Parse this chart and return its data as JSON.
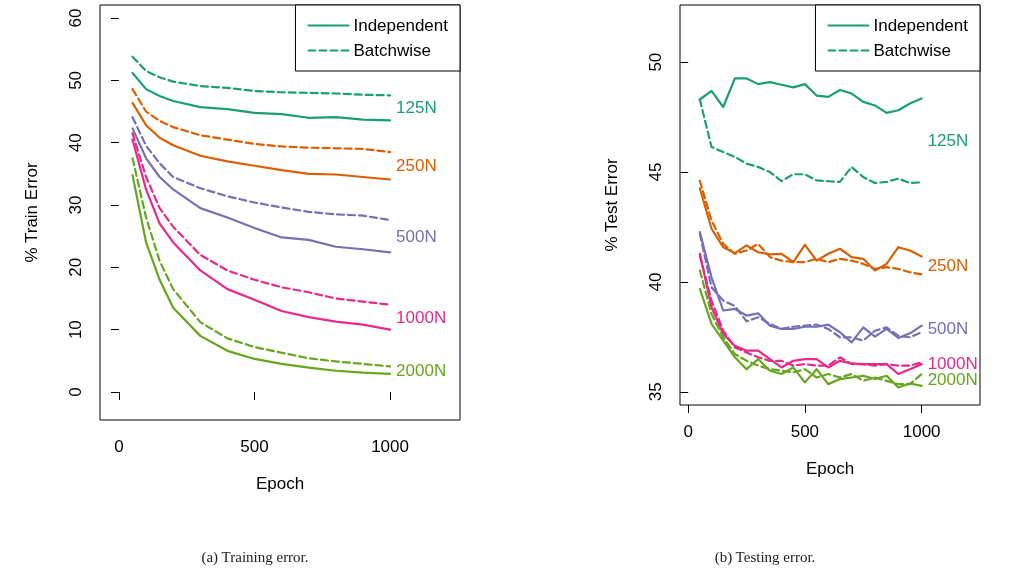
{
  "chart_data": [
    {
      "type": "line",
      "title": "(a) Training error.",
      "xlabel": "Epoch",
      "ylabel": "% Train Error",
      "x": [
        50,
        100,
        150,
        200,
        300,
        400,
        500,
        600,
        700,
        800,
        900,
        1000
      ],
      "xlim": [
        -70,
        1258
      ],
      "xticks": [
        0,
        500,
        1000
      ],
      "ylim": [
        -4.5,
        62.1
      ],
      "yticks": [
        0,
        10,
        20,
        30,
        40,
        50,
        60
      ],
      "grid": false,
      "legend": "top right",
      "marker": "none",
      "series": [
        {
          "name": "Independent",
          "color": "#1b9e77",
          "line_style": "solid",
          "values": [
            51.2,
            48.6,
            47.5,
            46.7,
            45.7,
            45.4,
            44.8,
            44.6,
            44.0,
            44.1,
            43.7,
            43.6
          ]
        },
        {
          "name": "Batchwise",
          "color": "#1b9e77",
          "line_style": "dashed",
          "values": [
            53.8,
            51.5,
            50.5,
            49.8,
            49.1,
            48.8,
            48.3,
            48.1,
            48.0,
            47.9,
            47.7,
            47.6
          ]
        },
        {
          "color": "#d95f02",
          "line_style": "solid",
          "values": [
            46.4,
            42.8,
            40.8,
            39.6,
            37.9,
            37.0,
            36.3,
            35.6,
            35.0,
            34.9,
            34.5,
            34.1
          ]
        },
        {
          "color": "#d95f02",
          "line_style": "dashed",
          "values": [
            48.6,
            45.0,
            43.5,
            42.5,
            41.2,
            40.5,
            39.8,
            39.4,
            39.2,
            39.1,
            39.0,
            38.5
          ]
        },
        {
          "color": "#7570b3",
          "line_style": "solid",
          "values": [
            42.3,
            37.5,
            34.5,
            32.5,
            29.5,
            28.0,
            26.3,
            24.8,
            24.4,
            23.3,
            22.9,
            22.4
          ]
        },
        {
          "color": "#7570b3",
          "line_style": "dashed",
          "values": [
            44.1,
            39.5,
            36.7,
            34.5,
            32.7,
            31.4,
            30.4,
            29.6,
            28.9,
            28.5,
            28.3,
            27.6
          ]
        },
        {
          "color": "#e7298a",
          "line_style": "solid",
          "values": [
            40.5,
            32.5,
            27.0,
            24.0,
            19.5,
            16.5,
            14.8,
            13.0,
            12.0,
            11.3,
            10.8,
            10.0
          ]
        },
        {
          "color": "#e7298a",
          "line_style": "dashed",
          "values": [
            41.5,
            34.5,
            29.5,
            26.5,
            22.0,
            19.5,
            18.0,
            16.8,
            16.0,
            15.0,
            14.5,
            14.0
          ]
        },
        {
          "color": "#66a61e",
          "line_style": "solid",
          "values": [
            34.8,
            24.0,
            18.0,
            13.5,
            9.0,
            6.6,
            5.3,
            4.5,
            3.9,
            3.4,
            3.1,
            2.9
          ]
        },
        {
          "color": "#66a61e",
          "line_style": "dashed",
          "values": [
            37.5,
            28.0,
            21.0,
            16.5,
            11.2,
            8.6,
            7.2,
            6.3,
            5.4,
            4.9,
            4.5,
            4.1
          ]
        }
      ],
      "annotations": [
        "125N",
        "250N",
        "500N",
        "1000N",
        "2000N"
      ]
    },
    {
      "type": "line",
      "title": "(b) Testing error.",
      "xlabel": "Epoch",
      "ylabel": "% Test Error",
      "x": [
        50,
        100,
        150,
        200,
        250,
        300,
        350,
        400,
        450,
        500,
        550,
        600,
        650,
        700,
        750,
        800,
        850,
        900,
        950,
        1000
      ],
      "xlim": [
        -35,
        1250
      ],
      "xticks": [
        0,
        500,
        1000
      ],
      "ylim": [
        34.4,
        52.6
      ],
      "yticks": [
        35,
        40,
        45,
        50
      ],
      "grid": false,
      "legend": "top right",
      "marker": "none",
      "series": [
        {
          "name": "Independent",
          "color": "#1b9e77",
          "line_style": "solid",
          "values": [
            48.3,
            48.69,
            47.96,
            49.26,
            49.26,
            49.0,
            49.09,
            48.97,
            48.85,
            49.0,
            48.48,
            48.42,
            48.73,
            48.57,
            48.19,
            48.03,
            47.69,
            47.81,
            48.12,
            48.35
          ]
        },
        {
          "name": "Batchwise",
          "color": "#1b9e77",
          "line_style": "dashed",
          "values": [
            48.3,
            46.14,
            45.91,
            45.69,
            45.38,
            45.23,
            45.0,
            44.59,
            44.9,
            44.9,
            44.62,
            44.58,
            44.55,
            45.23,
            44.77,
            44.5,
            44.55,
            44.7,
            44.5,
            44.53
          ]
        },
        {
          "color": "#d95f02",
          "line_style": "solid",
          "values": [
            44.26,
            42.42,
            41.58,
            41.31,
            41.66,
            41.35,
            41.25,
            41.28,
            40.9,
            41.69,
            40.97,
            41.28,
            41.51,
            41.13,
            41.05,
            40.52,
            40.82,
            41.58,
            41.43,
            41.16
          ]
        },
        {
          "color": "#d95f02",
          "line_style": "dashed",
          "values": [
            44.6,
            42.8,
            41.73,
            41.28,
            41.43,
            41.73,
            41.13,
            40.97,
            40.9,
            40.9,
            41.05,
            40.9,
            41.05,
            40.97,
            40.82,
            40.59,
            40.67,
            40.59,
            40.44,
            40.34
          ]
        },
        {
          "color": "#7570b3",
          "line_style": "solid",
          "values": [
            42.27,
            40.21,
            38.7,
            38.77,
            38.47,
            38.57,
            38.01,
            37.86,
            37.86,
            37.96,
            37.96,
            38.06,
            37.71,
            37.25,
            37.93,
            37.51,
            37.86,
            37.45,
            37.66,
            38.01
          ]
        },
        {
          "color": "#7570b3",
          "line_style": "dashed",
          "values": [
            42.19,
            39.76,
            39.15,
            38.9,
            38.21,
            38.39,
            38.09,
            37.86,
            37.96,
            38.01,
            38.06,
            37.86,
            37.48,
            37.48,
            37.33,
            37.78,
            37.93,
            37.55,
            37.48,
            37.71
          ]
        },
        {
          "color": "#e7298a",
          "line_style": "solid",
          "values": [
            41.28,
            38.85,
            37.63,
            37.1,
            36.87,
            36.87,
            36.49,
            36.11,
            36.41,
            36.49,
            36.49,
            36.11,
            36.41,
            36.29,
            36.26,
            36.26,
            36.26,
            35.81,
            36.03,
            36.26
          ]
        },
        {
          "color": "#e7298a",
          "line_style": "dashed",
          "values": [
            41.2,
            39.15,
            37.78,
            37.02,
            36.79,
            36.57,
            36.41,
            36.41,
            36.19,
            36.26,
            36.19,
            36.19,
            36.57,
            36.26,
            36.26,
            36.19,
            36.26,
            36.19,
            36.19,
            36.34
          ]
        },
        {
          "color": "#66a61e",
          "line_style": "solid",
          "values": [
            39.68,
            38.09,
            37.33,
            36.57,
            36.03,
            36.49,
            35.96,
            35.81,
            36.11,
            35.43,
            36.03,
            35.35,
            35.58,
            35.65,
            35.73,
            35.58,
            35.73,
            35.2,
            35.38,
            35.27
          ]
        },
        {
          "color": "#66a61e",
          "line_style": "dashed",
          "values": [
            40.52,
            38.54,
            37.48,
            36.72,
            36.41,
            36.19,
            36.03,
            35.96,
            35.88,
            36.03,
            35.65,
            35.81,
            35.65,
            35.81,
            35.5,
            35.65,
            35.5,
            35.35,
            35.35,
            35.81
          ]
        }
      ],
      "annotations": [
        "125N",
        "250N",
        "500N",
        "1000N",
        "2000N"
      ]
    }
  ]
}
